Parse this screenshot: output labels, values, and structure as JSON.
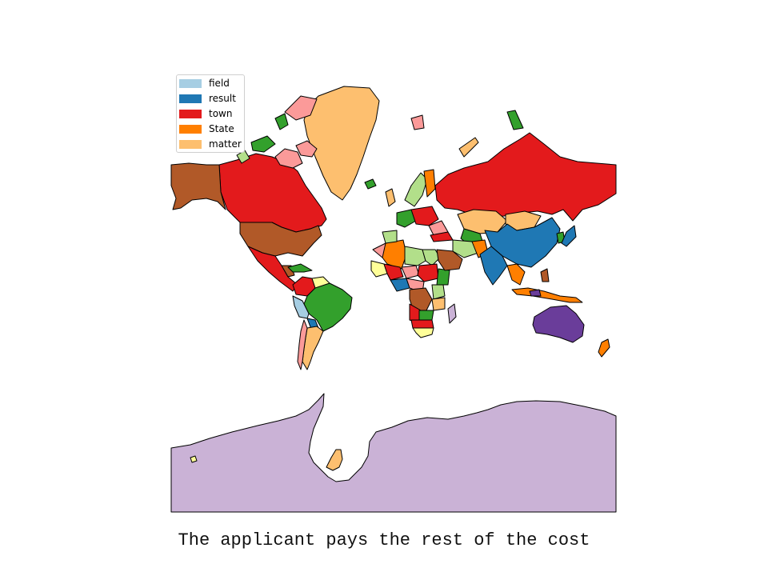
{
  "legend": {
    "items": [
      {
        "label": "field",
        "color": "#a6cee3"
      },
      {
        "label": "result",
        "color": "#1f78b4"
      },
      {
        "label": "town",
        "color": "#e31a1c"
      },
      {
        "label": "State",
        "color": "#ff7f00"
      },
      {
        "label": "matter",
        "color": "#fdbf6f"
      }
    ]
  },
  "palette": {
    "light_green": "#b2df8a",
    "green": "#33a02c",
    "pink": "#fb9a99",
    "brown": "#b15928",
    "purple": "#6a3d9a",
    "lavender": "#cab2d6",
    "yellow": "#ffff99"
  },
  "caption": "The applicant pays the rest of the cost"
}
